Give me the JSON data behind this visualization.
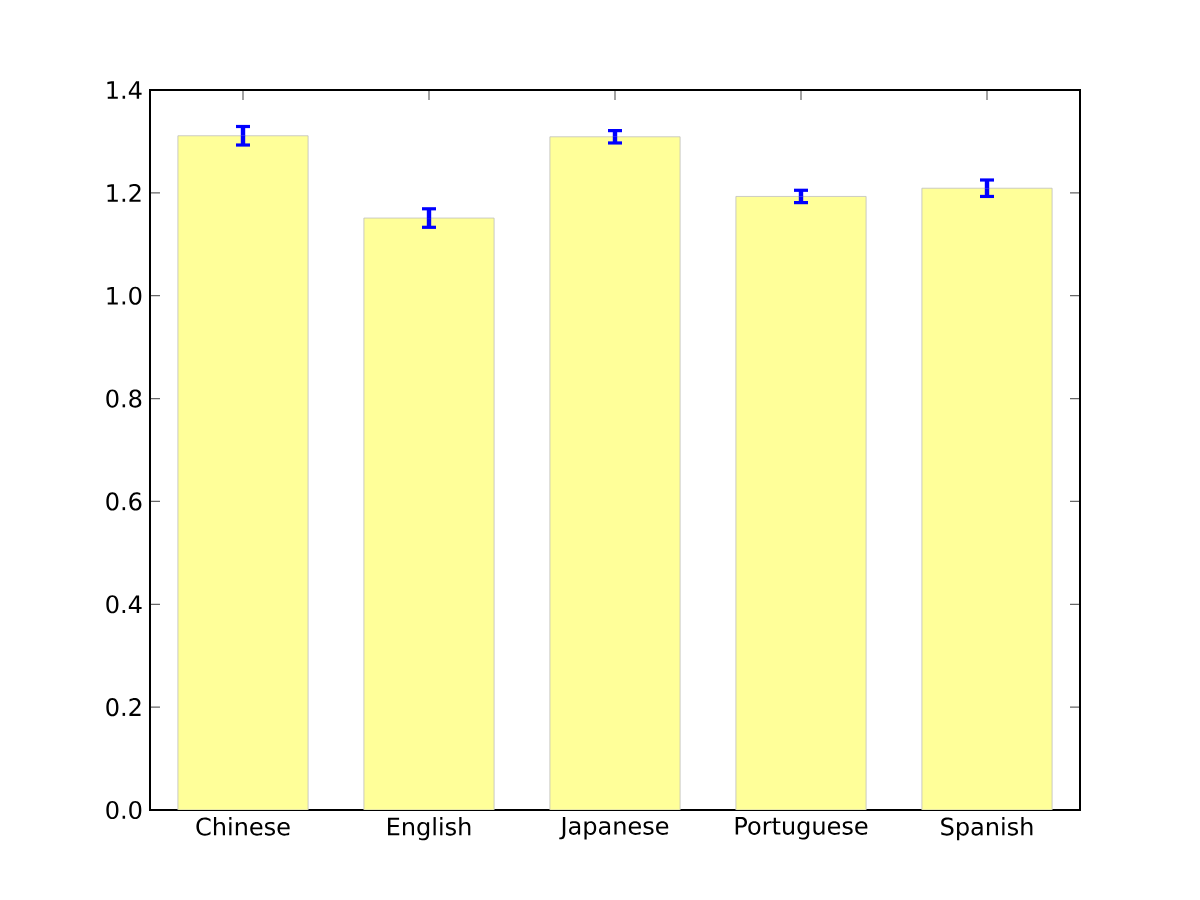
{
  "chart_data": {
    "type": "bar",
    "categories": [
      "Chinese",
      "English",
      "Japanese",
      "Portuguese",
      "Spanish"
    ],
    "values": [
      1.311,
      1.151,
      1.309,
      1.193,
      1.209
    ],
    "errors": [
      0.018,
      0.018,
      0.012,
      0.012,
      0.016
    ],
    "color": "#ffff99",
    "ylim": [
      0,
      1.4
    ],
    "yticks": [
      {
        "value": 0,
        "label": "0.0"
      },
      0.2,
      0.4,
      0.6,
      0.8,
      {
        "value": 1,
        "label": "1.0"
      },
      1.2,
      1.4
    ]
  }
}
